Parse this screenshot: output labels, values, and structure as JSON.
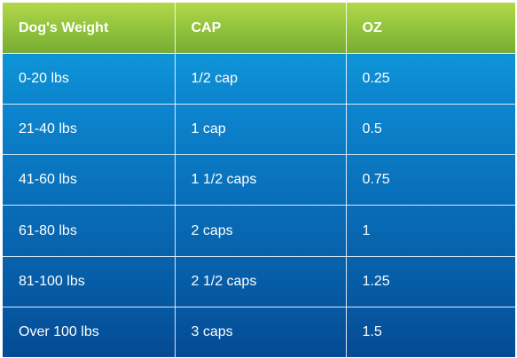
{
  "table": {
    "headers": [
      "Dog's Weight",
      "CAP",
      "OZ"
    ],
    "rows": [
      [
        "0-20 lbs",
        "1/2 cap",
        "0.25"
      ],
      [
        "21-40 lbs",
        "1 cap",
        "0.5"
      ],
      [
        "41-60 lbs",
        "1 1/2 caps",
        "0.75"
      ],
      [
        "61-80 lbs",
        "2 caps",
        "1"
      ],
      [
        "81-100 lbs",
        "2 1/2 caps",
        "1.25"
      ],
      [
        "Over 100 lbs",
        "3 caps",
        "1.5"
      ]
    ]
  },
  "colors": {
    "header_green": "#8fc13a",
    "body_blue_top": "#0f94d8",
    "body_blue_bottom": "#044a93",
    "text": "#ffffff"
  }
}
